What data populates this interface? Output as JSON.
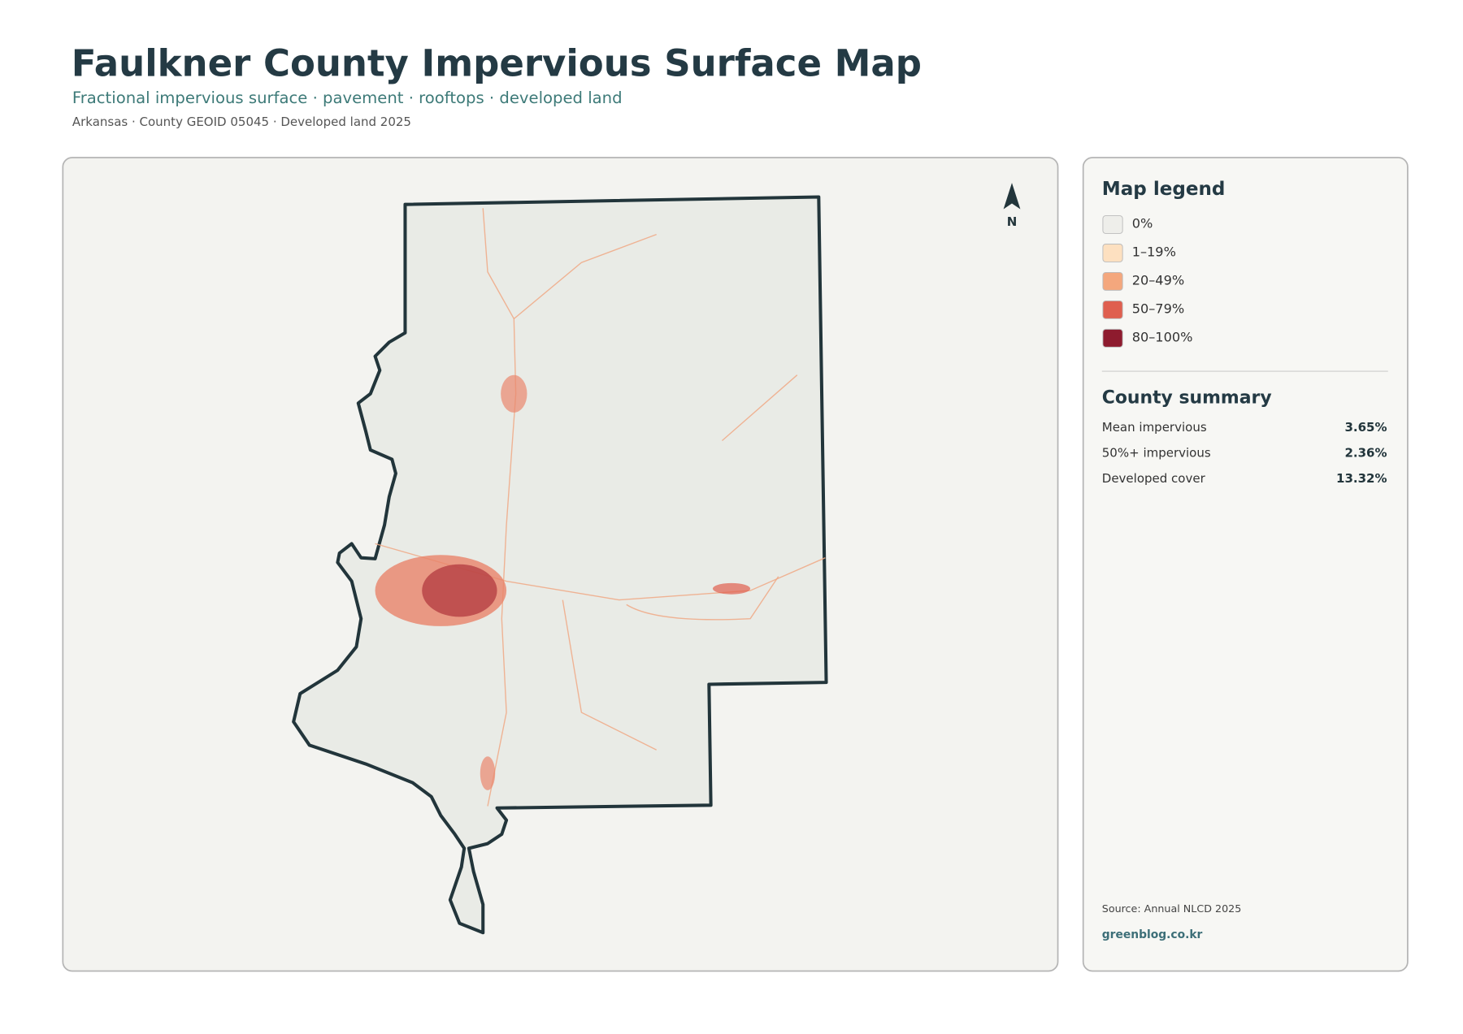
{
  "header": {
    "title": "Faulkner County Impervious Surface Map",
    "subtitle": "Fractional impervious surface · pavement · rooftops · developed land",
    "meta": "Arkansas · County GEOID 05045 · Developed land 2025"
  },
  "map": {
    "north_label": "N"
  },
  "legend": {
    "title": "Map legend",
    "items": [
      {
        "label": "0%",
        "color": "#eeeeea"
      },
      {
        "label": "1–19%",
        "color": "#fde0c0"
      },
      {
        "label": "20–49%",
        "color": "#f4a77d"
      },
      {
        "label": "50–79%",
        "color": "#df5f4f"
      },
      {
        "label": "80–100%",
        "color": "#8e1b2e"
      }
    ]
  },
  "summary": {
    "title": "County summary",
    "rows": [
      [
        "Mean impervious",
        "3.65%"
      ],
      [
        "50%+ impervious",
        "2.36%"
      ],
      [
        "Developed cover",
        "13.32%"
      ]
    ]
  },
  "footer": {
    "source": "Source: Annual NLCD 2025",
    "site": "greenblog.co.kr"
  }
}
